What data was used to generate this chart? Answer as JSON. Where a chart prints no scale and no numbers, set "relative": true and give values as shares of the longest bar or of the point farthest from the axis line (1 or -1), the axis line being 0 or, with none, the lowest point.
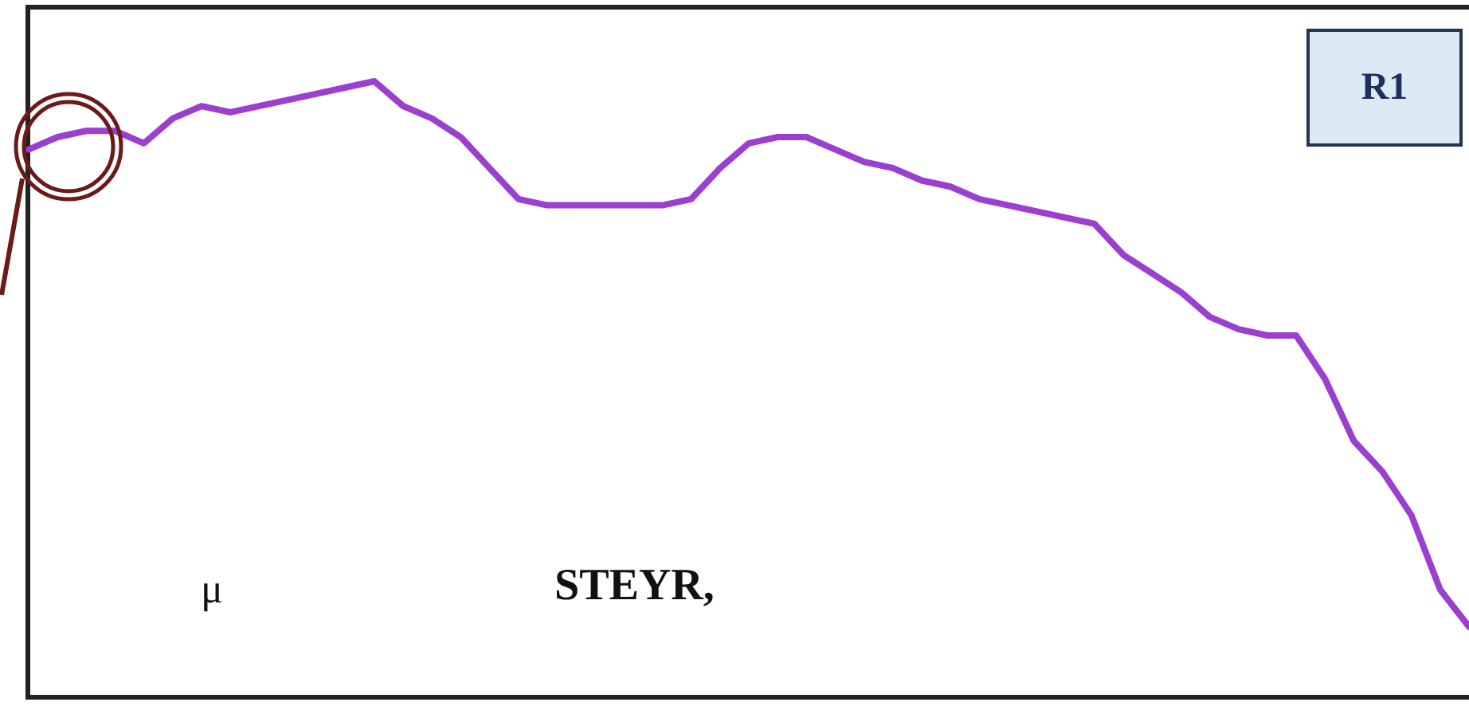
{
  "chart_data": {
    "type": "line",
    "relative": true,
    "categories": [
      null,
      null,
      null,
      null,
      null,
      null,
      null,
      null,
      null,
      null,
      null,
      null,
      null,
      null,
      null,
      null,
      null,
      null,
      null,
      null,
      null,
      null,
      null,
      null,
      null,
      null,
      null,
      null,
      null,
      null,
      null,
      null,
      null,
      null,
      null,
      null,
      null,
      null,
      null,
      null,
      null,
      null,
      null,
      null,
      null,
      null,
      null,
      null,
      null,
      null,
      null
    ],
    "series": [
      {
        "color": "#9b3fd0",
        "values": [
          0.89,
          0.91,
          0.92,
          0.92,
          0.9,
          0.94,
          0.96,
          0.95,
          0.96,
          0.97,
          0.98,
          0.99,
          1,
          0.96,
          0.94,
          0.91,
          0.86,
          0.81,
          0.8,
          0.8,
          0.8,
          0.8,
          0.8,
          0.81,
          0.86,
          0.9,
          0.91,
          0.91,
          0.89,
          0.87,
          0.86,
          0.84,
          0.83,
          0.81,
          0.8,
          0.79,
          0.78,
          0.77,
          0.72,
          0.69,
          0.66,
          0.62,
          0.6,
          0.59,
          0.59,
          0.52,
          0.42,
          0.37,
          0.3,
          0.18,
          0.12
        ]
      }
    ],
    "annotations": [
      "R1",
      "μ",
      "STEYR,"
    ],
    "legend": false,
    "marker": "none",
    "line_style": "solid"
  }
}
